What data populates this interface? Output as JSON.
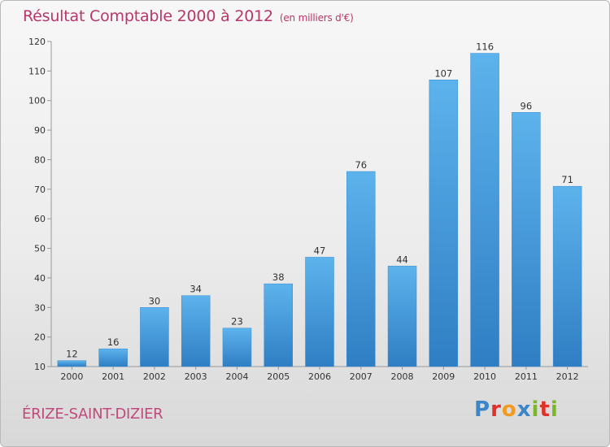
{
  "chart_data": {
    "type": "bar",
    "title": "Résultat Comptable 2000 à 2012",
    "subtitle": "(en milliers d'€)",
    "categories": [
      "2000",
      "2001",
      "2002",
      "2003",
      "2004",
      "2005",
      "2006",
      "2007",
      "2008",
      "2009",
      "2010",
      "2011",
      "2012"
    ],
    "values": [
      12,
      16,
      30,
      34,
      23,
      38,
      47,
      76,
      44,
      107,
      116,
      96,
      71
    ],
    "ylim": [
      10,
      120
    ],
    "yticks": [
      10,
      20,
      30,
      40,
      50,
      60,
      70,
      80,
      90,
      100,
      110,
      120
    ],
    "xlabel": "",
    "ylabel": "",
    "bar_color": "#4a9fdf",
    "grid": false
  },
  "place_name": "ÉRIZE-SAINT-DIZIER",
  "logo": {
    "letters": [
      "P",
      "r",
      "o",
      "x",
      "i",
      "t",
      "i"
    ],
    "colors": [
      "#3a86c8",
      "#e0302a",
      "#f29a1f",
      "#3a86c8",
      "#7ab828",
      "#e0302a",
      "#7ab828"
    ]
  }
}
